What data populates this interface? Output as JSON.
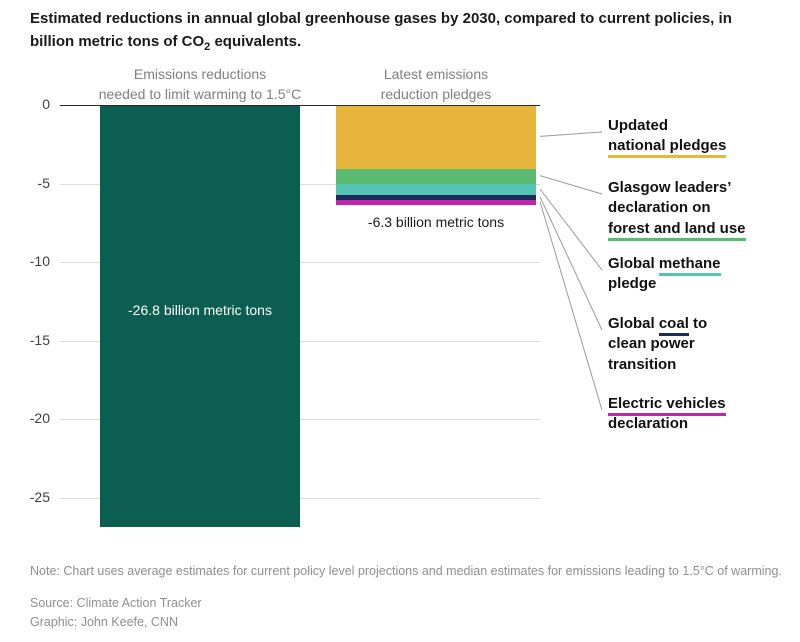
{
  "title": {
    "pre": "Estimated reductions in annual global greenhouse gases by 2030, compared to current policies, in\nbillion metric tons of CO",
    "sub": "2",
    "post": " equivalents."
  },
  "column_headers": [
    "Emissions reductions\nneeded to limit warming to 1.5°C",
    "Latest emissions\nreduction pledges"
  ],
  "chart_data": {
    "type": "bar",
    "title": "Estimated reductions in annual global greenhouse gases by 2030, compared to current policies, in billion metric tons of CO2 equivalents.",
    "categories": [
      "Emissions reductions needed to limit warming to 1.5°C",
      "Latest emissions reduction pledges"
    ],
    "xlabel": "",
    "ylabel": "",
    "ylim": [
      -28,
      0
    ],
    "yticks": [
      0,
      -5,
      -10,
      -15,
      -20,
      -25
    ],
    "grid": true,
    "bars": [
      {
        "label": "Emissions reductions needed to limit warming to 1.5°C",
        "total": -26.8,
        "value_label": "-26.8 billion metric tons",
        "color": "#0b5e51"
      },
      {
        "label": "Latest emissions reduction pledges",
        "total": -6.3,
        "value_label": "-6.3 billion metric tons",
        "segments": [
          {
            "name": "Updated national pledges",
            "value": -4.0,
            "color": "#e9b63c"
          },
          {
            "name": "Glasgow leaders’ declaration on forest and land use",
            "value": -1.0,
            "color": "#5bba72"
          },
          {
            "name": "Global methane pledge",
            "value": -0.7,
            "color": "#54c4b4"
          },
          {
            "name": "Global coal to clean power transition",
            "value": -0.3,
            "color": "#1d2b5a"
          },
          {
            "name": "Electric vehicles declaration",
            "value": -0.3,
            "color": "#c226ad"
          }
        ]
      }
    ]
  },
  "legend": {
    "items": [
      {
        "pre": "Updated\n",
        "highlight": "national pledges",
        "post": "",
        "color": "#e9b63c"
      },
      {
        "pre": "Glasgow leaders’\ndeclaration on\n",
        "highlight": "forest and land use",
        "post": "",
        "color": "#5bba72"
      },
      {
        "pre": "Global ",
        "highlight": "methane",
        "post": "\npledge",
        "color": "#54c4b4"
      },
      {
        "pre": "Global ",
        "highlight": "coal",
        "post": " to\nclean power\ntransition",
        "color": "#1d2b5a"
      },
      {
        "pre": "",
        "highlight": "Electric vehicles",
        "post": "\ndeclaration",
        "color": "#c226ad"
      }
    ]
  },
  "footer": {
    "note": "Note: Chart uses average estimates for current policy level projections and median estimates for emissions leading to 1.5°C of warming.",
    "source": "Source: Climate Action Tracker",
    "credit": "Graphic: John Keefe, CNN"
  }
}
